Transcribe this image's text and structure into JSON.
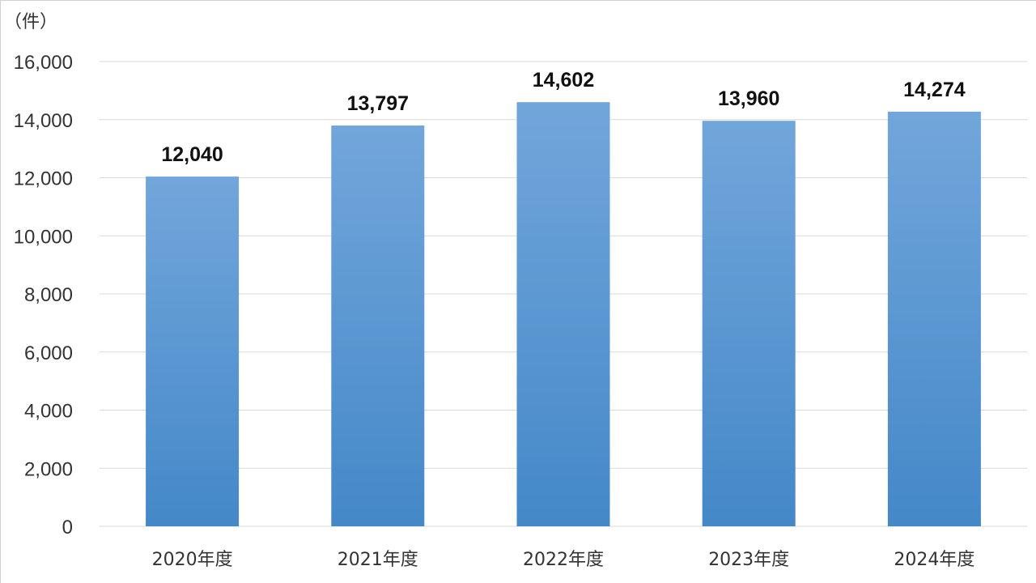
{
  "chart_data": {
    "type": "bar",
    "unit_label": "（件）",
    "categories": [
      "2020年度",
      "2021年度",
      "2022年度",
      "2023年度",
      "2024年度"
    ],
    "values": [
      12040,
      13797,
      14602,
      13960,
      14274
    ],
    "data_labels": [
      "12,040",
      "13,797",
      "14,602",
      "13,960",
      "14,274"
    ],
    "ylim": [
      0,
      16000
    ],
    "yticks": [
      0,
      2000,
      4000,
      6000,
      8000,
      10000,
      12000,
      14000,
      16000
    ],
    "ytick_labels": [
      "0",
      "2,000",
      "4,000",
      "6,000",
      "8,000",
      "10,000",
      "12,000",
      "14,000",
      "16,000"
    ],
    "grid": true,
    "bar_color_top": "#72a6db",
    "bar_color_bottom": "#4488c8"
  }
}
